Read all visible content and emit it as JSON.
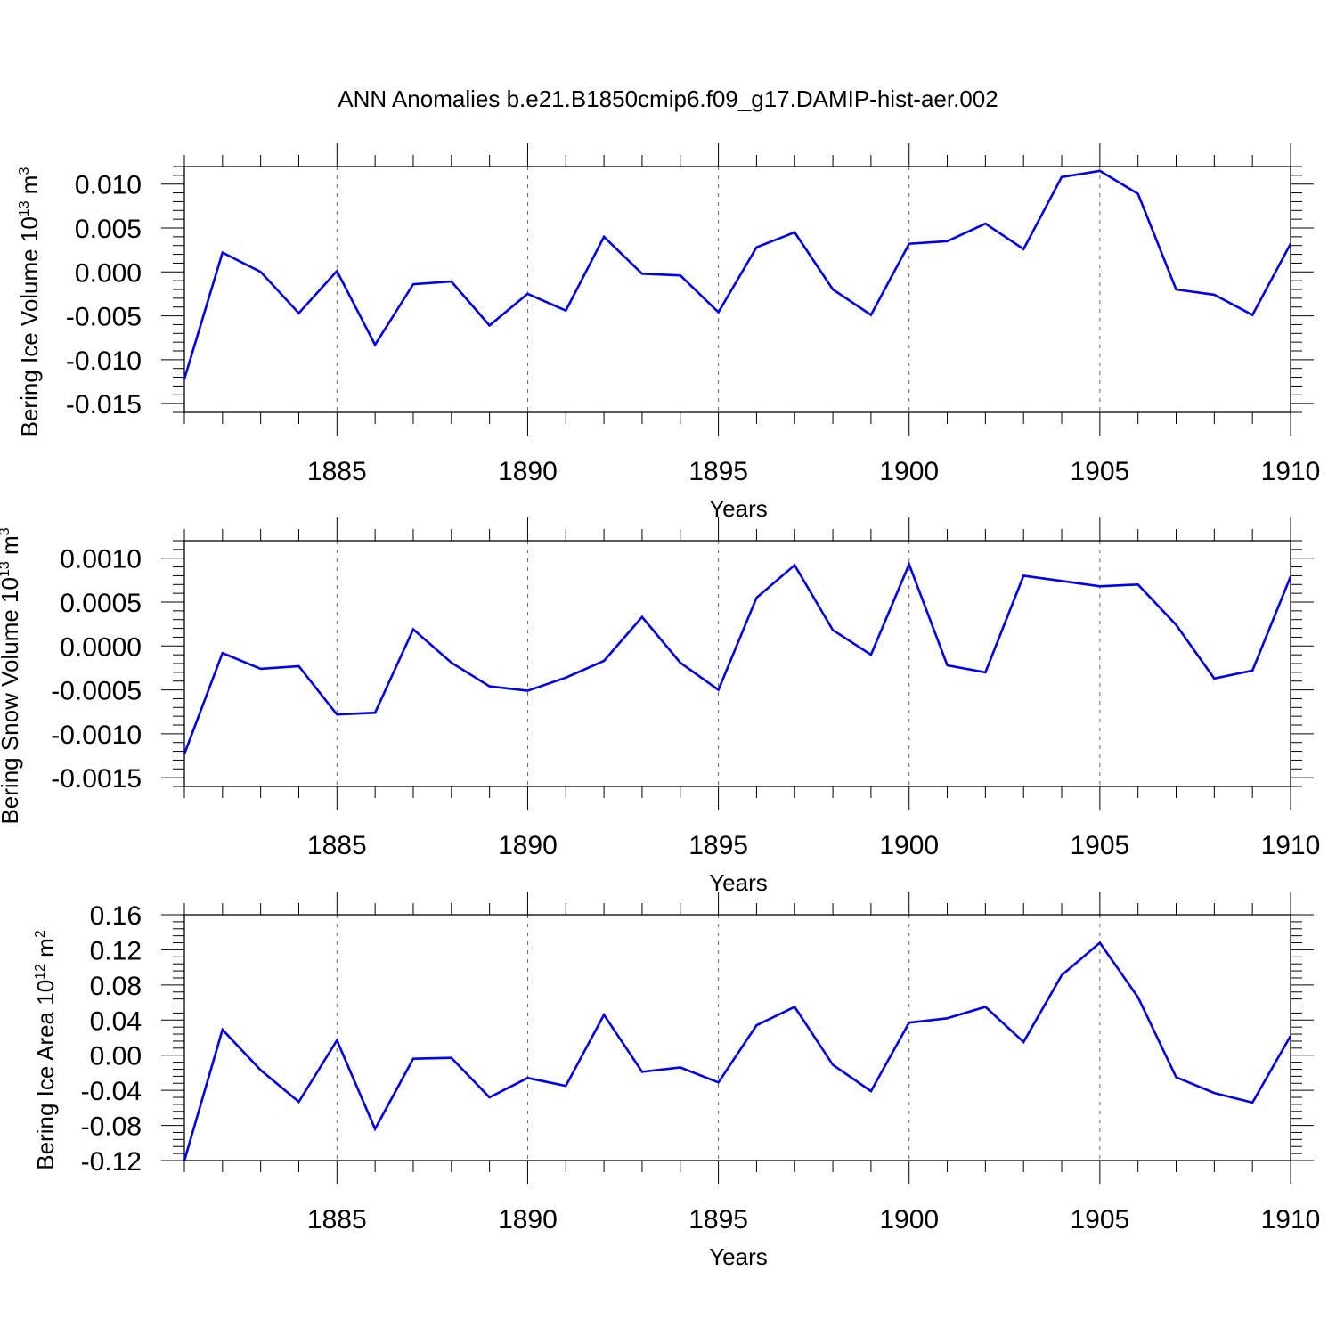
{
  "title": "ANN Anomalies b.e21.B1850cmip6.f09_g17.DAMIP-hist-aer.002",
  "colors": {
    "line": "#0000ee",
    "axis": "#000000",
    "grid": "#666666"
  },
  "chart_data": [
    {
      "type": "line",
      "ylabel": "Bering Ice Volume 10",
      "ylabel_exponent": "13",
      "ylabel_unit": " m",
      "ylabel_unit_exponent": "3",
      "xlabel": "Years",
      "xlim": [
        1881,
        1910
      ],
      "ylim": [
        -0.016,
        0.012
      ],
      "yticks": [
        -0.015,
        -0.01,
        -0.005,
        0.0,
        0.005,
        0.01
      ],
      "ytick_labels": [
        "-0.015",
        "-0.010",
        "-0.005",
        "0.000",
        "0.005",
        "0.010"
      ],
      "xticks": [
        1885,
        1890,
        1895,
        1900,
        1905,
        1910
      ],
      "xtick_labels": [
        "1885",
        "1890",
        "1895",
        "1900",
        "1905",
        "1910"
      ],
      "grid": "vertical-dashed",
      "x": [
        1881,
        1882,
        1883,
        1884,
        1885,
        1886,
        1887,
        1888,
        1889,
        1890,
        1891,
        1892,
        1893,
        1894,
        1895,
        1896,
        1897,
        1898,
        1899,
        1900,
        1901,
        1902,
        1903,
        1904,
        1905,
        1906,
        1907,
        1908,
        1909,
        1910
      ],
      "values": [
        -0.0122,
        0.0022,
        0.0,
        -0.0047,
        0.0001,
        -0.0083,
        -0.0014,
        -0.0011,
        -0.0061,
        -0.0025,
        -0.0044,
        0.004,
        -0.0002,
        -0.0004,
        -0.0046,
        0.0028,
        0.0045,
        -0.002,
        -0.0049,
        0.0032,
        0.0035,
        0.0055,
        0.0026,
        0.0108,
        0.0115,
        0.0089,
        -0.002,
        -0.0026,
        -0.0049,
        0.0032
      ]
    },
    {
      "type": "line",
      "ylabel": "Bering Snow Volume 10",
      "ylabel_exponent": "13",
      "ylabel_unit": " m",
      "ylabel_unit_exponent": "3",
      "xlabel": "Years",
      "xlim": [
        1881,
        1910
      ],
      "ylim": [
        -0.0016,
        0.0012
      ],
      "yticks": [
        -0.0015,
        -0.001,
        -0.0005,
        0.0,
        0.0005,
        0.001
      ],
      "ytick_labels": [
        "-0.0015",
        "-0.0010",
        "-0.0005",
        "0.0000",
        "0.0005",
        "0.0010"
      ],
      "xticks": [
        1885,
        1890,
        1895,
        1900,
        1905,
        1910
      ],
      "xtick_labels": [
        "1885",
        "1890",
        "1895",
        "1900",
        "1905",
        "1910"
      ],
      "grid": "vertical-dashed",
      "x": [
        1881,
        1882,
        1883,
        1884,
        1885,
        1886,
        1887,
        1888,
        1889,
        1890,
        1891,
        1892,
        1893,
        1894,
        1895,
        1896,
        1897,
        1898,
        1899,
        1900,
        1901,
        1902,
        1903,
        1904,
        1905,
        1906,
        1907,
        1908,
        1909,
        1910
      ],
      "values": [
        -0.00123,
        -8e-05,
        -0.00026,
        -0.00023,
        -0.00078,
        -0.00076,
        0.00019,
        -0.00019,
        -0.00046,
        -0.00051,
        -0.00036,
        -0.00017,
        0.00033,
        -0.00019,
        -0.0005,
        0.00055,
        0.00092,
        0.00018,
        -0.0001,
        0.00093,
        -0.00022,
        -0.0003,
        0.0008,
        0.00074,
        0.00068,
        0.0007,
        0.00024,
        -0.00037,
        -0.00028,
        0.00079
      ]
    },
    {
      "type": "line",
      "ylabel": "Bering Ice Area 10",
      "ylabel_exponent": "12",
      "ylabel_unit": " m",
      "ylabel_unit_exponent": "2",
      "xlabel": "Years",
      "xlim": [
        1881,
        1910
      ],
      "ylim": [
        -0.12,
        0.16
      ],
      "yticks": [
        -0.12,
        -0.08,
        -0.04,
        0.0,
        0.04,
        0.08,
        0.12,
        0.16
      ],
      "ytick_labels": [
        "-0.12",
        "-0.08",
        "-0.04",
        "0.00",
        "0.04",
        "0.08",
        "0.12",
        "0.16"
      ],
      "xticks": [
        1885,
        1890,
        1895,
        1900,
        1905,
        1910
      ],
      "xtick_labels": [
        "1885",
        "1890",
        "1895",
        "1900",
        "1905",
        "1910"
      ],
      "grid": "vertical-dashed",
      "x": [
        1881,
        1882,
        1883,
        1884,
        1885,
        1886,
        1887,
        1888,
        1889,
        1890,
        1891,
        1892,
        1893,
        1894,
        1895,
        1896,
        1897,
        1898,
        1899,
        1900,
        1901,
        1902,
        1903,
        1904,
        1905,
        1906,
        1907,
        1908,
        1909,
        1910
      ],
      "values": [
        -0.12,
        0.029,
        -0.017,
        -0.053,
        0.017,
        -0.084,
        -0.004,
        -0.003,
        -0.048,
        -0.026,
        -0.035,
        0.046,
        -0.019,
        -0.014,
        -0.031,
        0.034,
        0.055,
        -0.011,
        -0.041,
        0.037,
        0.042,
        0.055,
        0.015,
        0.091,
        0.128,
        0.066,
        -0.025,
        -0.043,
        -0.054,
        0.022
      ]
    }
  ]
}
